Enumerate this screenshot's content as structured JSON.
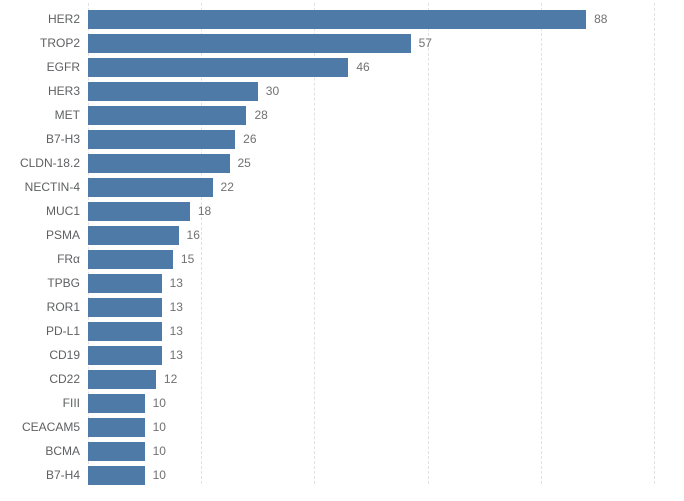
{
  "chart_data": {
    "type": "bar",
    "orientation": "horizontal",
    "title": "",
    "xlabel": "",
    "ylabel": "",
    "categories": [
      "HER2",
      "TROP2",
      "EGFR",
      "HER3",
      "MET",
      "B7-H3",
      "CLDN-18.2",
      "NECTIN-4",
      "MUC1",
      "PSMA",
      "FRα",
      "TPBG",
      "ROR1",
      "PD-L1",
      "CD19",
      "CD22",
      "FIII",
      "CEACAM5",
      "BCMA",
      "B7-H4"
    ],
    "values": [
      88,
      57,
      46,
      30,
      28,
      26,
      25,
      22,
      18,
      16,
      15,
      13,
      13,
      13,
      13,
      12,
      10,
      10,
      10,
      10
    ],
    "data_labels": [
      88,
      57,
      46,
      30,
      28,
      26,
      25,
      22,
      18,
      16,
      15,
      13,
      13,
      13,
      13,
      12,
      10,
      10,
      10,
      10
    ],
    "xlim": [
      0,
      100
    ],
    "gridline_values": [
      0,
      20,
      40,
      60,
      80,
      100
    ],
    "grid": true,
    "legend": false,
    "colors": {
      "bar": "#4d7aa6",
      "gridline": "#e1e1e1",
      "category_label": "#5f6062",
      "value_label": "#717171",
      "background": "#ffffff"
    }
  }
}
